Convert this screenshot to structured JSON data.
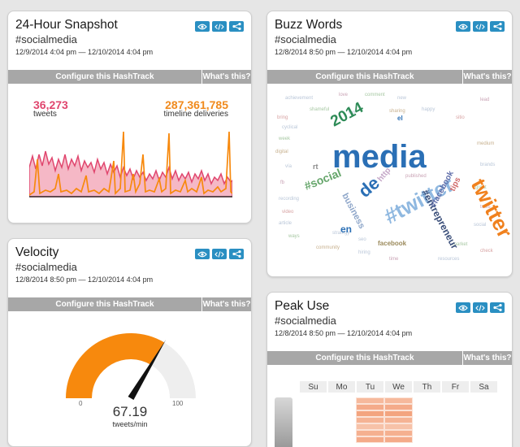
{
  "snapshot": {
    "title": "24-Hour Snapshot",
    "tag": "#socialmedia",
    "range": "12/9/2014 4:04 pm — 12/10/2014 4:04 pm",
    "configure": "Configure this HashTrack",
    "help": "What's this?",
    "tweets": {
      "value": "36,273",
      "label": "tweets",
      "color": "#e0466e"
    },
    "deliveries": {
      "value": "287,361,785",
      "label": "timeline deliveries",
      "color": "#f08a1d"
    }
  },
  "buzz": {
    "title": "Buzz Words",
    "tag": "#socialmedia",
    "range": "12/8/2014 8:50 pm — 12/10/2014 4:04 pm",
    "configure": "Configure this HashTrack",
    "help": "What's this?",
    "words_large": [
      {
        "text": "media",
        "color": "#2a6fb5"
      },
      {
        "text": "twitter",
        "color": "#f0811e"
      },
      {
        "text": "#twitter",
        "color": "#8fb8e0"
      },
      {
        "text": "de",
        "color": "#2a6fb5"
      },
      {
        "text": "#entrepreneur",
        "color": "#3b4f7a"
      },
      {
        "text": "2014",
        "color": "#2e8b57"
      },
      {
        "text": "#social",
        "color": "#66a66b"
      },
      {
        "text": "business",
        "color": "#8ea6c9"
      },
      {
        "text": "http",
        "color": "#c5a8c8"
      },
      {
        "text": "facebook",
        "color": "#9b8a5b"
      },
      {
        "text": "tips",
        "color": "#d06a6a"
      },
      {
        "text": "en",
        "color": "#2a6fb5"
      },
      {
        "text": "#facebook",
        "color": "#5c6ba8"
      },
      {
        "text": "el",
        "color": "#2a6fb5"
      },
      {
        "text": "rt",
        "color": "#8a8a8a"
      }
    ]
  },
  "velocity": {
    "title": "Velocity",
    "tag": "#socialmedia",
    "range": "12/8/2014 8:50 pm — 12/10/2014 4:04 pm",
    "configure": "Configure this HashTrack",
    "help": "What's this?",
    "value": "67.19",
    "unit": "tweets/min",
    "min": "0",
    "max": "100",
    "fraction": 0.6719,
    "fill_color": "#f7890d",
    "track_color": "#eeeeee"
  },
  "peak": {
    "title": "Peak Use",
    "tag": "#socialmedia",
    "range": "12/8/2014 8:50 pm — 12/10/2014 4:04 pm",
    "configure": "Configure this HashTrack",
    "help": "What's this?",
    "days": [
      "Su",
      "Mo",
      "Tu",
      "We",
      "Th",
      "Fr",
      "Sa"
    ]
  },
  "icons": [
    "eye-icon",
    "code-icon",
    "share-icon"
  ],
  "accent": "#2a8fc2"
}
